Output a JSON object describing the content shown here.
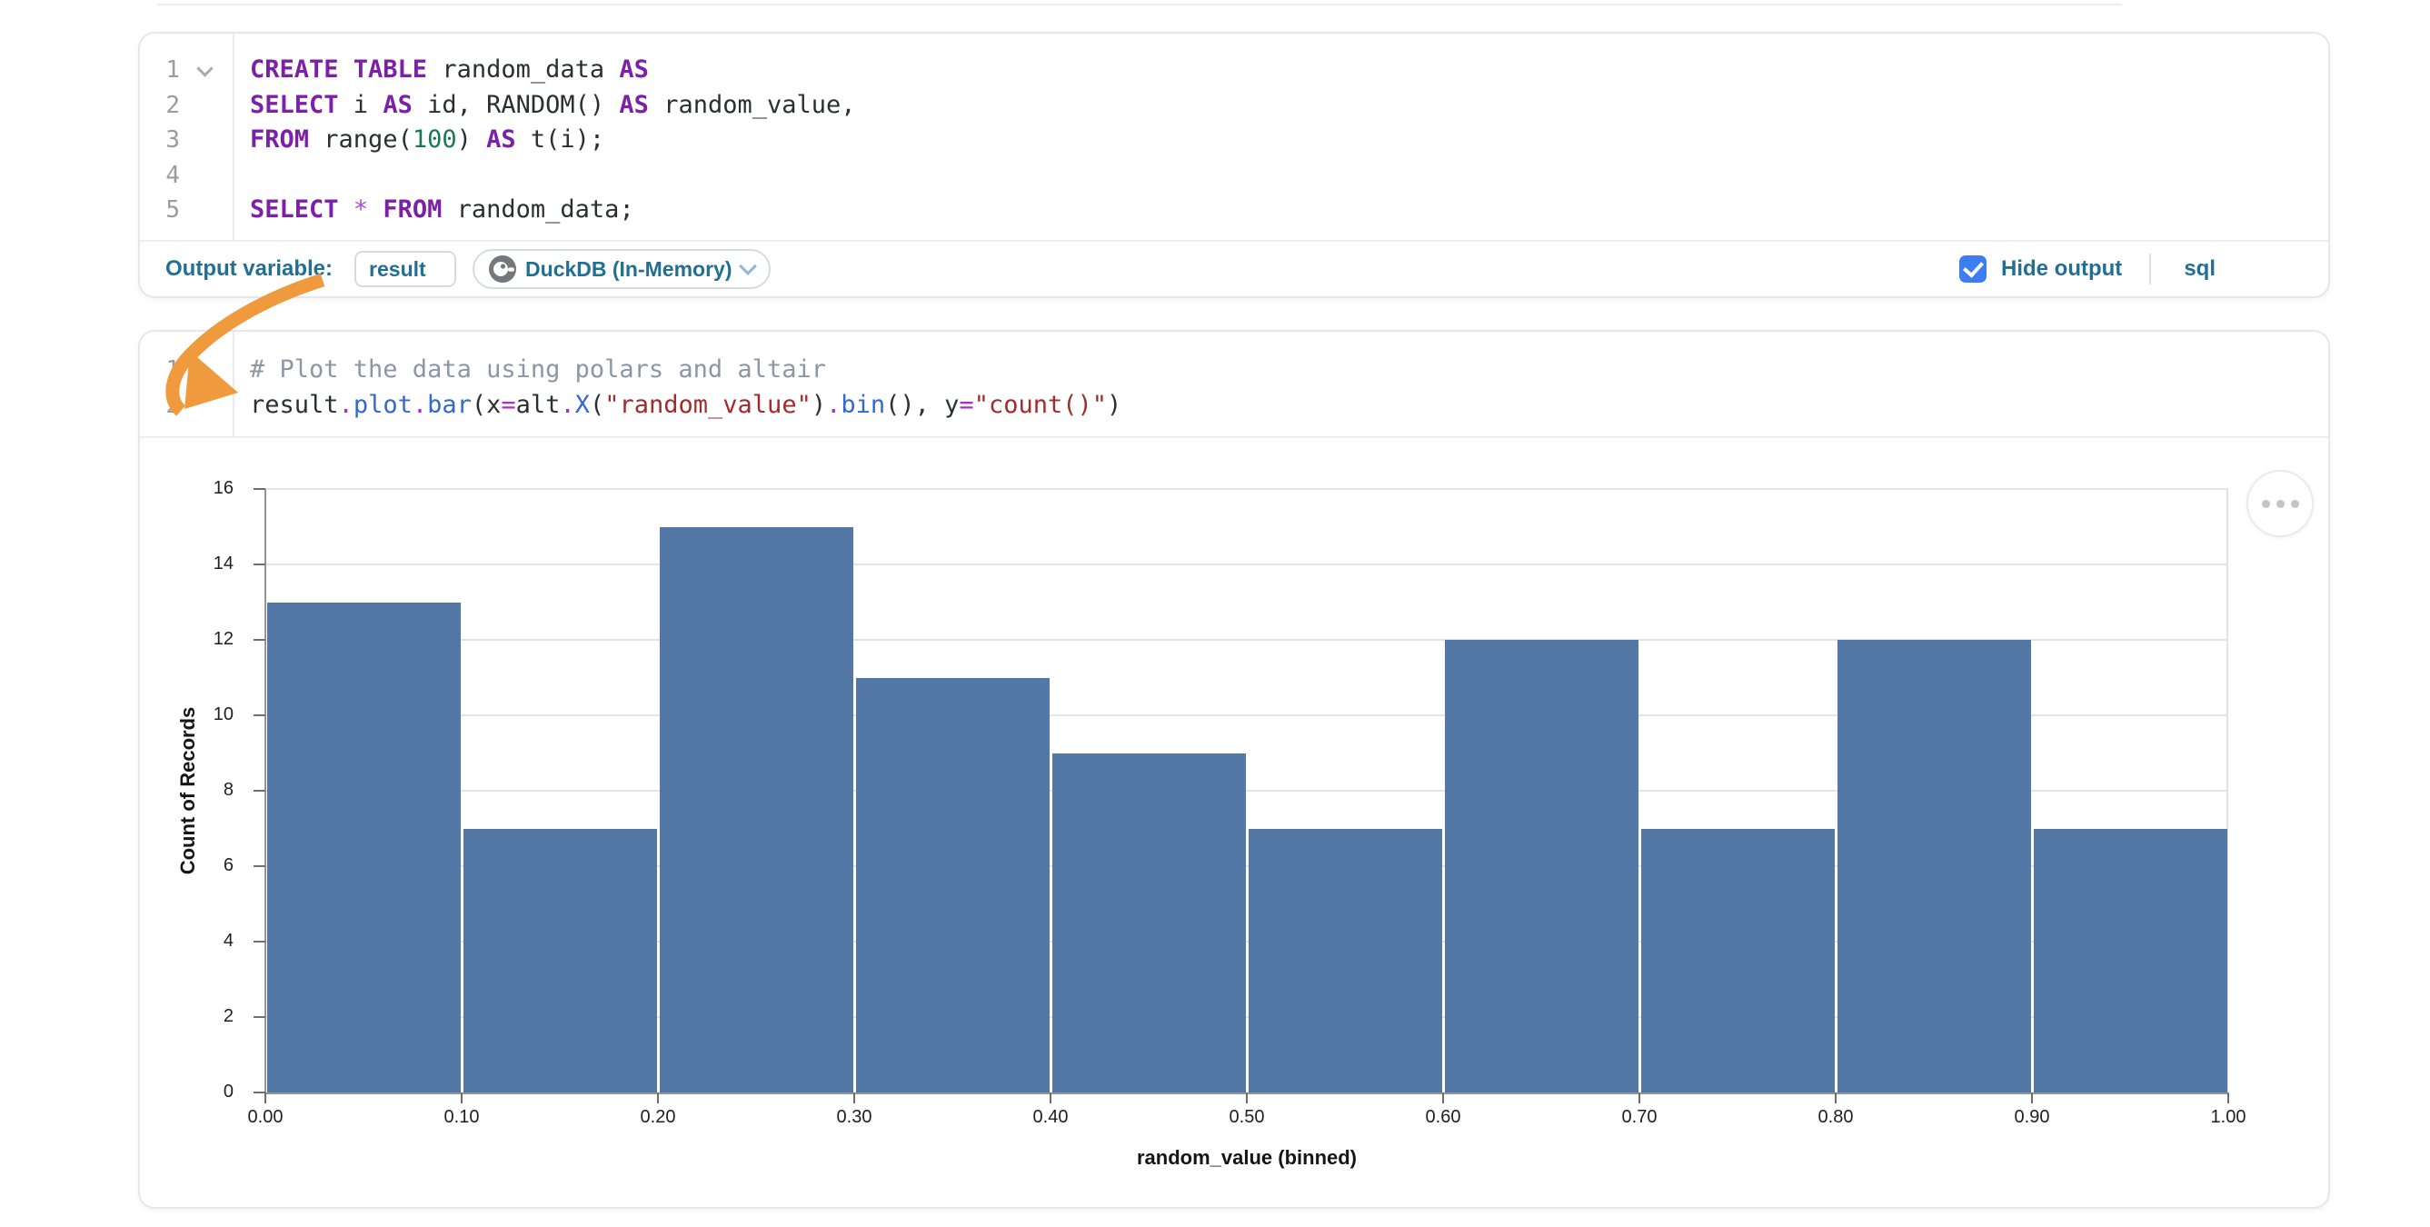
{
  "sql_cell": {
    "gutter": {
      "numbers": [
        "1",
        "2",
        "3",
        "4",
        "5"
      ],
      "collapse_chevron": true
    },
    "code": [
      [
        {
          "c": "kw",
          "t": "CREATE TABLE"
        },
        {
          "c": "pl",
          "t": " random_data "
        },
        {
          "c": "kw",
          "t": "AS"
        }
      ],
      [
        {
          "c": "kw",
          "t": "SELECT"
        },
        {
          "c": "pl",
          "t": " i "
        },
        {
          "c": "kw",
          "t": "AS"
        },
        {
          "c": "pl",
          "t": " id, RANDOM() "
        },
        {
          "c": "kw",
          "t": "AS"
        },
        {
          "c": "pl",
          "t": " random_value,"
        }
      ],
      [
        {
          "c": "kw",
          "t": "FROM"
        },
        {
          "c": "pl",
          "t": " range("
        },
        {
          "c": "num",
          "t": "100"
        },
        {
          "c": "pl",
          "t": ") "
        },
        {
          "c": "kw",
          "t": "AS"
        },
        {
          "c": "pl",
          "t": " t(i);"
        }
      ],
      [],
      [
        {
          "c": "kw",
          "t": "SELECT"
        },
        {
          "c": "pl",
          "t": " "
        },
        {
          "c": "star",
          "t": "*"
        },
        {
          "c": "pl",
          "t": " "
        },
        {
          "c": "kw",
          "t": "FROM"
        },
        {
          "c": "pl",
          "t": " random_data;"
        }
      ]
    ],
    "footer": {
      "output_variable_label": "Output variable:",
      "output_variable_value": "result",
      "engine_label": "DuckDB (In-Memory)",
      "hide_output_label": "Hide output",
      "language_label": "sql"
    }
  },
  "python_cell": {
    "gutter": {
      "numbers": [
        "1",
        "2"
      ],
      "collapse_chevron": false
    },
    "code": [
      [
        {
          "c": "cm",
          "t": "# Plot the data using polars and altair"
        }
      ],
      [
        {
          "c": "pl",
          "t": "result"
        },
        {
          "c": "op",
          "t": "."
        },
        {
          "c": "fn",
          "t": "plot"
        },
        {
          "c": "op",
          "t": "."
        },
        {
          "c": "fn",
          "t": "bar"
        },
        {
          "c": "pl",
          "t": "(x"
        },
        {
          "c": "op",
          "t": "="
        },
        {
          "c": "pl",
          "t": "alt"
        },
        {
          "c": "op",
          "t": "."
        },
        {
          "c": "fn",
          "t": "X"
        },
        {
          "c": "pl",
          "t": "("
        },
        {
          "c": "str",
          "t": "\"random_value\""
        },
        {
          "c": "pl",
          "t": ")"
        },
        {
          "c": "op",
          "t": "."
        },
        {
          "c": "fn",
          "t": "bin"
        },
        {
          "c": "pl",
          "t": "(), y"
        },
        {
          "c": "op",
          "t": "="
        },
        {
          "c": "str",
          "t": "\"count()\""
        },
        {
          "c": "pl",
          "t": ")"
        }
      ]
    ]
  },
  "chart_data": {
    "type": "bar",
    "title": "",
    "xlabel": "random_value (binned)",
    "ylabel": "Count of Records",
    "bins": [
      {
        "x0": 0.0,
        "x1": 0.1
      },
      {
        "x0": 0.1,
        "x1": 0.2
      },
      {
        "x0": 0.2,
        "x1": 0.3
      },
      {
        "x0": 0.3,
        "x1": 0.4
      },
      {
        "x0": 0.4,
        "x1": 0.5
      },
      {
        "x0": 0.5,
        "x1": 0.6
      },
      {
        "x0": 0.6,
        "x1": 0.7
      },
      {
        "x0": 0.7,
        "x1": 0.8
      },
      {
        "x0": 0.8,
        "x1": 0.9
      },
      {
        "x0": 0.9,
        "x1": 1.0
      }
    ],
    "values": [
      13,
      7,
      15,
      11,
      9,
      7,
      12,
      7,
      12,
      7
    ],
    "x_tick_labels": [
      "0.00",
      "0.10",
      "0.20",
      "0.30",
      "0.40",
      "0.50",
      "0.60",
      "0.70",
      "0.80",
      "0.90",
      "1.00"
    ],
    "y_ticks": [
      0,
      2,
      4,
      6,
      8,
      10,
      12,
      14,
      16
    ],
    "xlim": [
      0,
      1
    ],
    "ylim": [
      0,
      16
    ],
    "grid": true,
    "legend": "none",
    "bar_color": "#5478a5"
  },
  "colors": {
    "accent_blue": "#226f94",
    "checkbox_blue": "#3d7df2",
    "arrow_orange": "#f09a3e",
    "bar_blue": "#5478a5"
  }
}
